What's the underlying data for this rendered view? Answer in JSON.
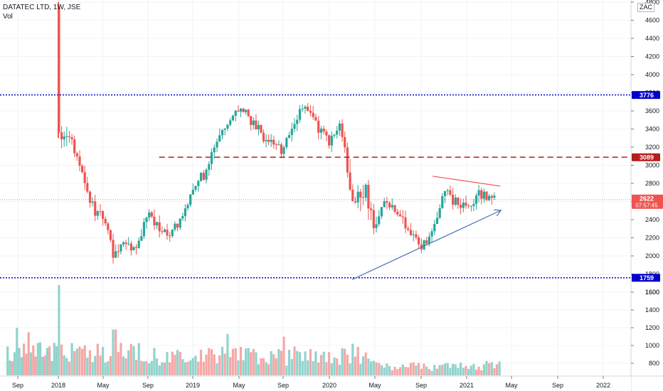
{
  "legend": {
    "symbol": "DATATEC LTD, 1W, JSE",
    "volume_label": "Vol"
  },
  "currency": "ZAC",
  "price_tags": {
    "support": "1759",
    "resistance": "3776",
    "mid_level": "3089",
    "last_price": "2622",
    "countdown": "07:57:45"
  },
  "colors": {
    "up": "#26a69a",
    "down": "#ef5350",
    "vol_up": "#91d3cd",
    "vol_down": "#f4a8a6",
    "level_blue": "#0000cc",
    "level_red": "#b71c1c",
    "trend_blue": "#4a6fb5",
    "trend_red": "#ef5350",
    "grid": "#f0f3fa",
    "axis_text": "#131722"
  },
  "chart_data": {
    "type": "candlestick",
    "title": "DATATEC LTD, 1W, JSE",
    "ylabel": "",
    "price_axis": {
      "ylim": [
        1500,
        4800
      ],
      "ticks": [
        1600,
        1800,
        2000,
        2200,
        2400,
        2600,
        2800,
        3000,
        3200,
        3400,
        3600,
        3800,
        4000,
        4200,
        4400,
        4600,
        4800
      ]
    },
    "x_ticks": [
      "Sep",
      "2018",
      "May",
      "Sep",
      "2019",
      "May",
      "Sep",
      "2020",
      "May",
      "Sep",
      "2021",
      "May",
      "Sep",
      "2022"
    ],
    "time_range": [
      "2017-08",
      "2022-03"
    ],
    "grid": true,
    "horizontal_levels": [
      {
        "value": 3776,
        "style": "dotted",
        "color": "blue"
      },
      {
        "value": 3089,
        "style": "dashed",
        "color": "red"
      },
      {
        "value": 1759,
        "style": "dotted",
        "color": "blue"
      }
    ],
    "trendlines": [
      {
        "from": [
          "2020-03",
          1740
        ],
        "to": [
          "2021-04",
          2500
        ],
        "color": "blue",
        "arrow": true
      },
      {
        "from": [
          "2020-10",
          2880
        ],
        "to": [
          "2021-04",
          2770
        ],
        "color": "red"
      }
    ],
    "price_path": [
      [
        "2018-01",
        4750
      ],
      [
        "2018-01",
        3300
      ],
      [
        "2018-02",
        3350
      ],
      [
        "2018-03",
        3000
      ],
      [
        "2018-04",
        2550
      ],
      [
        "2018-05",
        2400
      ],
      [
        "2018-06",
        2000
      ],
      [
        "2018-07",
        2150
      ],
      [
        "2018-08",
        2050
      ],
      [
        "2018-09",
        2500
      ],
      [
        "2018-10",
        2300
      ],
      [
        "2018-11",
        2250
      ],
      [
        "2018-12",
        2400
      ],
      [
        "2019-01",
        2750
      ],
      [
        "2019-02",
        2900
      ],
      [
        "2019-03",
        3250
      ],
      [
        "2019-04",
        3400
      ],
      [
        "2019-05",
        3650
      ],
      [
        "2019-06",
        3500
      ],
      [
        "2019-07",
        3350
      ],
      [
        "2019-08",
        3250
      ],
      [
        "2019-09",
        3150
      ],
      [
        "2019-10",
        3500
      ],
      [
        "2019-11",
        3700
      ],
      [
        "2019-12",
        3400
      ],
      [
        "2020-01",
        3250
      ],
      [
        "2020-02",
        3500
      ],
      [
        "2020-03",
        2500
      ],
      [
        "2020-04",
        2750
      ],
      [
        "2020-05",
        2350
      ],
      [
        "2020-06",
        2650
      ],
      [
        "2020-07",
        2450
      ],
      [
        "2020-08",
        2300
      ],
      [
        "2020-09",
        2100
      ],
      [
        "2020-10",
        2250
      ],
      [
        "2020-11",
        2700
      ],
      [
        "2020-12",
        2600
      ],
      [
        "2021-01",
        2500
      ],
      [
        "2021-02",
        2700
      ],
      [
        "2021-03",
        2622
      ]
    ],
    "volume_axis": {
      "ylim": [
        650,
        1700
      ],
      "ticks": [
        800,
        1000,
        1200,
        1400,
        1600
      ]
    },
    "volume_peaks": [
      [
        "2017-09",
        1200
      ],
      [
        "2017-10",
        1150
      ],
      [
        "2018-01",
        1680
      ],
      [
        "2018-01",
        1240
      ],
      [
        "2018-06",
        1180
      ],
      [
        "2019-04",
        1130
      ],
      [
        "2019-09",
        1100
      ],
      [
        "2020-03",
        1020
      ]
    ]
  }
}
